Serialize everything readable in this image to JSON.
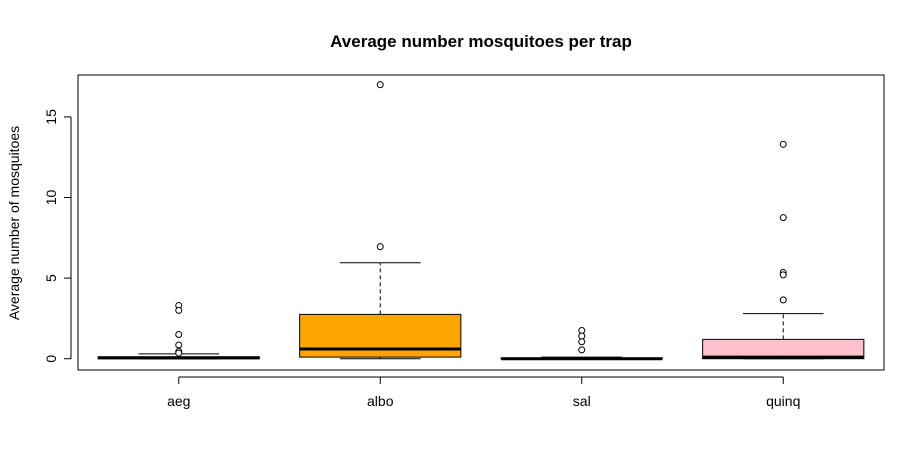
{
  "chart_data": {
    "type": "boxplot",
    "title": "Average number mosquitoes per trap",
    "xlabel": "",
    "ylabel": "Average number of mosquitoes",
    "ylim": [
      -0.7,
      17.6
    ],
    "yticks": [
      0,
      5,
      10,
      15
    ],
    "grid": false,
    "legend": "none",
    "categories": [
      "aeg",
      "albo",
      "sal",
      "quinq"
    ],
    "series": [
      {
        "category": "aeg",
        "color": "#000000",
        "whisker_low": 0.0,
        "q1": 0.0,
        "median": 0.05,
        "q3": 0.12,
        "whisker_high": 0.3,
        "outliers": [
          3.3,
          3.0,
          1.5,
          0.85,
          0.45,
          0.35
        ]
      },
      {
        "category": "albo",
        "color": "#FFA500",
        "whisker_low": 0.0,
        "q1": 0.1,
        "median": 0.6,
        "q3": 2.75,
        "whisker_high": 5.95,
        "outliers": [
          17.0,
          6.95
        ]
      },
      {
        "category": "sal",
        "color": "#000000",
        "whisker_low": 0.0,
        "q1": 0.0,
        "median": 0.0,
        "q3": 0.05,
        "whisker_high": 0.1,
        "outliers": [
          1.75,
          1.4,
          1.05,
          0.55
        ]
      },
      {
        "category": "quinq",
        "color": "#FFC0CB",
        "whisker_low": 0.0,
        "q1": 0.0,
        "median": 0.1,
        "q3": 1.2,
        "whisker_high": 2.8,
        "outliers": [
          13.3,
          8.75,
          5.35,
          5.2,
          3.65
        ]
      }
    ]
  }
}
